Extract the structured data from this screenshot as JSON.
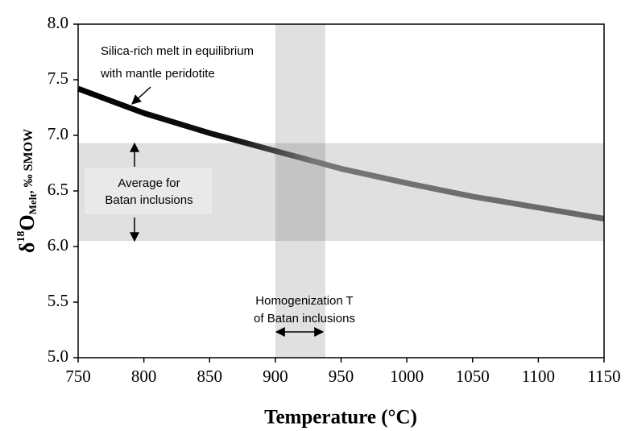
{
  "chart_data": {
    "type": "line",
    "x": [
      750,
      800,
      850,
      900,
      950,
      1000,
      1050,
      1100,
      1150
    ],
    "values": [
      7.42,
      7.2,
      7.02,
      6.86,
      6.7,
      6.57,
      6.45,
      6.35,
      6.25
    ],
    "color": "#000000",
    "xlim": [
      750,
      1150
    ],
    "xticks": [
      750,
      800,
      850,
      900,
      950,
      1000,
      1050,
      1100,
      1150
    ],
    "ylim": [
      5,
      8
    ],
    "yticks": [
      {
        "value": 5,
        "label": "5.0"
      },
      {
        "value": 5.5,
        "label": "5.5"
      },
      {
        "value": 6,
        "label": "6.0"
      },
      {
        "value": 6.5,
        "label": "6.5"
      },
      {
        "value": 7,
        "label": "7.0"
      },
      {
        "value": 7.5,
        "label": "7.5"
      },
      {
        "value": 8,
        "label": "8.0"
      }
    ],
    "x_label": "Temperature (°C)",
    "y_label": [
      "δ",
      "18",
      "O",
      "Melt",
      ", ‰ SMOW"
    ],
    "bands": {
      "y": [
        6.05,
        6.93
      ],
      "x": [
        900,
        938
      ]
    },
    "annotations": {
      "curve": [
        "Silica-rich melt in equilibrium",
        "with mantle peridotite"
      ],
      "average": [
        "Average for",
        "Batan inclusions"
      ],
      "homogenization": [
        "Homogenization T",
        "of Batan inclusions"
      ]
    }
  }
}
